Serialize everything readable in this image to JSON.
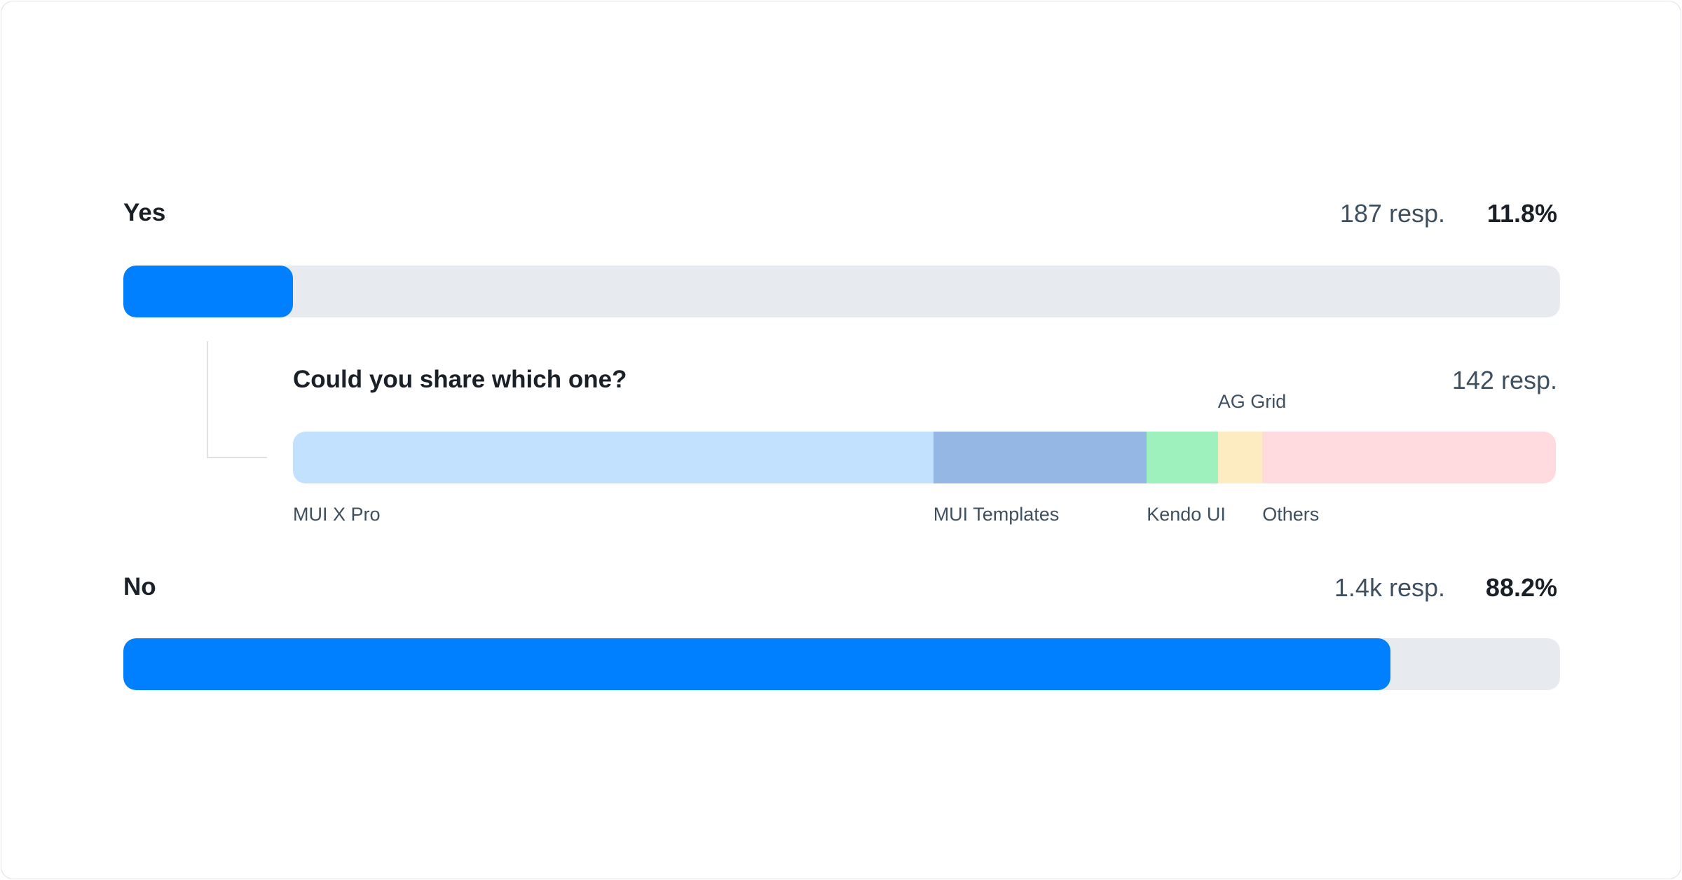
{
  "chart_data": {
    "type": "bar",
    "orientation": "horizontal",
    "series": [
      {
        "name": "Yes",
        "responses_label": "187 resp.",
        "percent_label": "11.8%",
        "value": 11.8
      },
      {
        "name": "No",
        "responses_label": "1.4k resp.",
        "percent_label": "88.2%",
        "value": 88.2
      }
    ],
    "xlim": [
      0,
      100
    ],
    "fill_color": "#007FFF",
    "track_color": "#E7EBF0",
    "sub_question": {
      "title": "Could you share which one?",
      "responses_label": "142 resp.",
      "type": "stacked-bar",
      "categories": [
        "MUI X Pro",
        "MUI Templates",
        "Kendo UI",
        "AG Grid",
        "Others"
      ],
      "values": [
        72,
        24,
        8,
        5,
        33
      ],
      "colors": [
        "#C2E0FF",
        "#94B8E3",
        "#9EF0BD",
        "#FDEBC2",
        "#FFDADE"
      ]
    }
  }
}
